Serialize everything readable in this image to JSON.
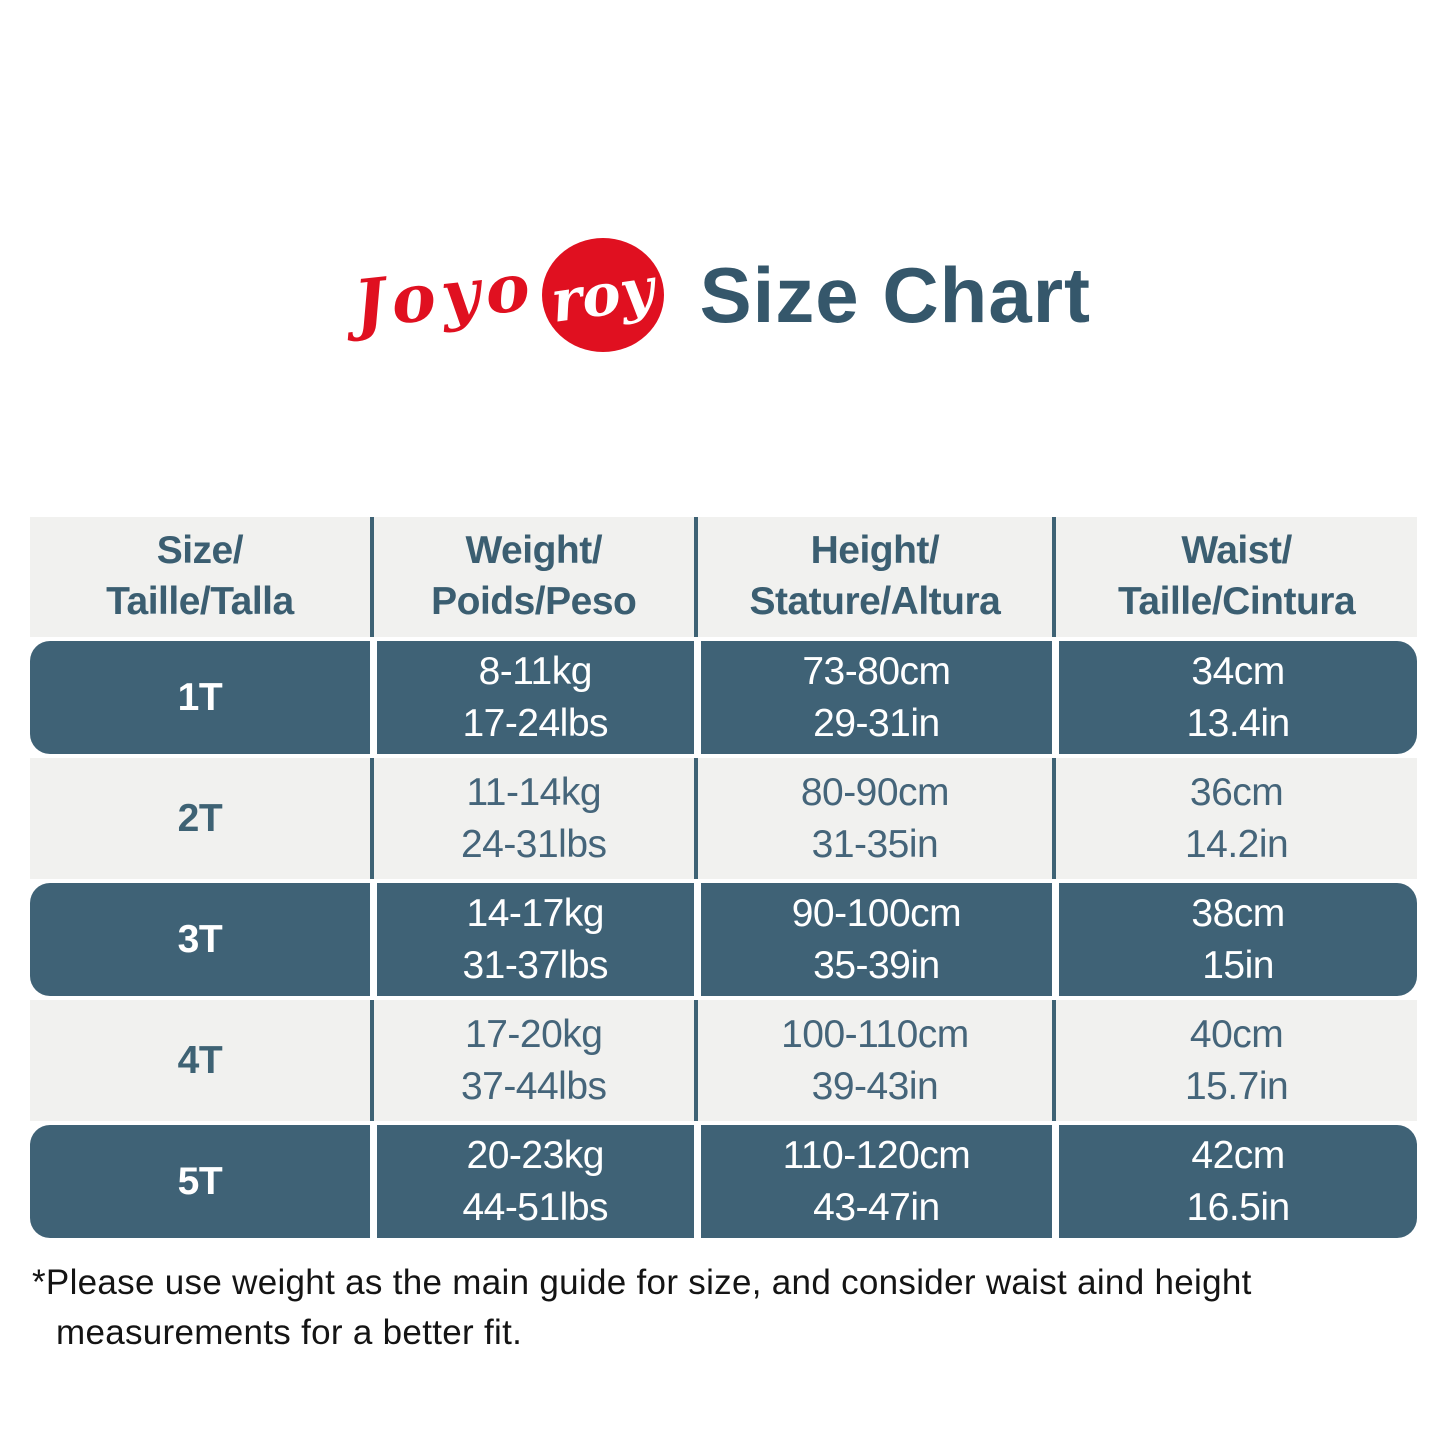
{
  "brand": {
    "script_left": "Joyo",
    "script_circle": "roy",
    "logo_color": "#e01020"
  },
  "title": "Size Chart",
  "colors": {
    "title_color": "#35576b",
    "dark_row_bg": "#3f6276",
    "light_row_bg": "#f1f1ef",
    "logo_red": "#e01020"
  },
  "table": {
    "headers": [
      "Size/\nTaille/Talla",
      "Weight/\nPoids/Peso",
      "Height/\nStature/Altura",
      "Waist/\nTaille/Cintura"
    ],
    "rows": [
      {
        "size": "1T",
        "weight": "8-11kg\n17-24lbs",
        "height": "73-80cm\n29-31in",
        "waist": "34cm\n13.4in"
      },
      {
        "size": "2T",
        "weight": "11-14kg\n24-31lbs",
        "height": "80-90cm\n31-35in",
        "waist": "36cm\n14.2in"
      },
      {
        "size": "3T",
        "weight": "14-17kg\n31-37lbs",
        "height": "90-100cm\n35-39in",
        "waist": "38cm\n15in"
      },
      {
        "size": "4T",
        "weight": "17-20kg\n37-44lbs",
        "height": "100-110cm\n39-43in",
        "waist": "40cm\n15.7in"
      },
      {
        "size": "5T",
        "weight": "20-23kg\n44-51lbs",
        "height": "110-120cm\n43-47in",
        "waist": "42cm\n16.5in"
      }
    ]
  },
  "note": {
    "line1": "*Please use weight as the main guide for size, and consider waist aind height",
    "line2": "measurements for a better fit."
  }
}
